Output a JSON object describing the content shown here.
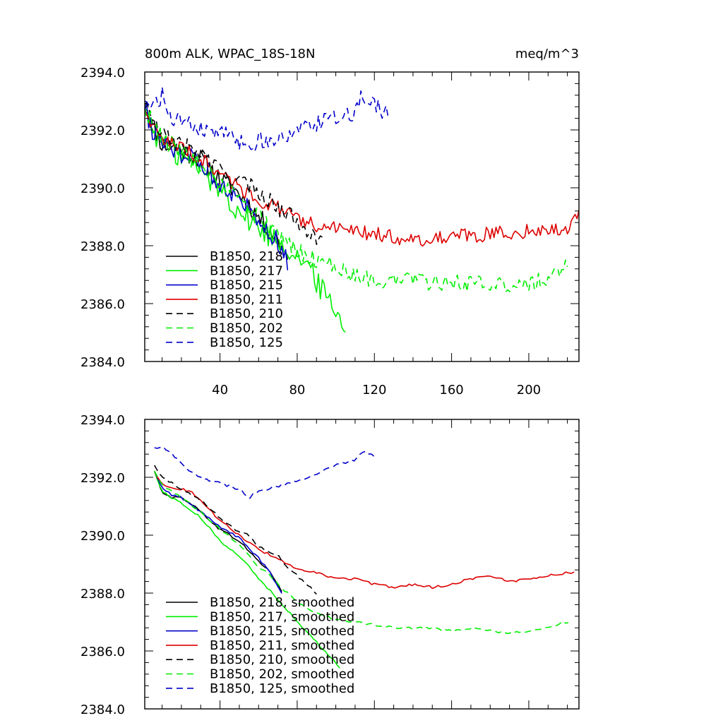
{
  "figure": {
    "title": "800m ALK, WPAC_18S-18N",
    "units": "meq/m^3"
  },
  "colors": {
    "black": "#000000",
    "green": "#00ee00",
    "blue": "#0000cc",
    "red": "#dd0000"
  },
  "chart_data": [
    {
      "type": "line",
      "name": "raw",
      "xlim": [
        1,
        226
      ],
      "ylim": [
        2384.0,
        2394.0
      ],
      "x_tick_labels": [
        "40",
        "80",
        "120",
        "160",
        "200"
      ],
      "x_ticks": [
        40,
        80,
        120,
        160,
        200
      ],
      "y_tick_labels": [
        "2394.0",
        "2392.0",
        "2390.0",
        "2388.0",
        "2386.0",
        "2384.0"
      ],
      "y_ticks": [
        2394,
        2392,
        2390,
        2388,
        2386,
        2384
      ],
      "series": [
        {
          "label": "B1850, 218",
          "color": "black",
          "dash": "solid",
          "noise": 0.35,
          "points": [
            [
              1,
              2392.9
            ],
            [
              5,
              2392.2
            ],
            [
              10,
              2391.5
            ],
            [
              20,
              2391.3
            ],
            [
              30,
              2391.0
            ],
            [
              40,
              2390.3
            ],
            [
              50,
              2389.8
            ],
            [
              60,
              2389.0
            ],
            [
              70,
              2388.2
            ],
            [
              75,
              2387.6
            ]
          ]
        },
        {
          "label": "B1850, 217",
          "color": "green",
          "dash": "solid",
          "noise": 0.45,
          "points": [
            [
              1,
              2392.8
            ],
            [
              5,
              2392.0
            ],
            [
              10,
              2391.6
            ],
            [
              20,
              2391.1
            ],
            [
              30,
              2390.6
            ],
            [
              40,
              2390.0
            ],
            [
              50,
              2389.2
            ],
            [
              60,
              2388.6
            ],
            [
              70,
              2388.2
            ],
            [
              80,
              2387.7
            ],
            [
              90,
              2386.8
            ],
            [
              100,
              2385.8
            ],
            [
              105,
              2385.1
            ]
          ]
        },
        {
          "label": "B1850, 215",
          "color": "blue",
          "dash": "solid",
          "noise": 0.35,
          "points": [
            [
              1,
              2392.8
            ],
            [
              5,
              2392.0
            ],
            [
              10,
              2391.5
            ],
            [
              20,
              2391.2
            ],
            [
              30,
              2390.8
            ],
            [
              40,
              2390.2
            ],
            [
              50,
              2389.6
            ],
            [
              60,
              2389.0
            ],
            [
              70,
              2388.1
            ],
            [
              75,
              2387.5
            ]
          ]
        },
        {
          "label": "B1850, 211",
          "color": "red",
          "dash": "solid",
          "noise": 0.25,
          "points": [
            [
              1,
              2392.8
            ],
            [
              5,
              2392.1
            ],
            [
              10,
              2391.7
            ],
            [
              20,
              2391.4
            ],
            [
              30,
              2391.0
            ],
            [
              40,
              2390.5
            ],
            [
              50,
              2390.0
            ],
            [
              60,
              2389.6
            ],
            [
              70,
              2389.3
            ],
            [
              80,
              2388.9
            ],
            [
              90,
              2388.7
            ],
            [
              100,
              2388.6
            ],
            [
              120,
              2388.4
            ],
            [
              140,
              2388.2
            ],
            [
              160,
              2388.3
            ],
            [
              180,
              2388.4
            ],
            [
              200,
              2388.5
            ],
            [
              215,
              2388.6
            ],
            [
              220,
              2388.6
            ],
            [
              226,
              2389.0
            ]
          ]
        },
        {
          "label": "B1850, 210",
          "color": "black",
          "dash": "dash",
          "noise": 0.3,
          "points": [
            [
              1,
              2393.0
            ],
            [
              5,
              2392.3
            ],
            [
              10,
              2391.8
            ],
            [
              20,
              2391.5
            ],
            [
              30,
              2391.2
            ],
            [
              40,
              2390.6
            ],
            [
              50,
              2390.2
            ],
            [
              60,
              2389.9
            ],
            [
              70,
              2389.3
            ],
            [
              80,
              2388.9
            ],
            [
              90,
              2388.3
            ],
            [
              93,
              2388.0
            ]
          ]
        },
        {
          "label": "B1850, 202",
          "color": "green",
          "dash": "dash",
          "noise": 0.3,
          "points": [
            [
              1,
              2392.8
            ],
            [
              10,
              2391.6
            ],
            [
              20,
              2391.2
            ],
            [
              30,
              2390.8
            ],
            [
              40,
              2390.2
            ],
            [
              50,
              2389.5
            ],
            [
              60,
              2389.0
            ],
            [
              70,
              2388.4
            ],
            [
              80,
              2387.8
            ],
            [
              90,
              2387.5
            ],
            [
              100,
              2387.3
            ],
            [
              110,
              2387.0
            ],
            [
              120,
              2386.8
            ],
            [
              140,
              2386.8
            ],
            [
              160,
              2386.7
            ],
            [
              180,
              2386.7
            ],
            [
              190,
              2386.6
            ],
            [
              200,
              2386.7
            ],
            [
              210,
              2386.9
            ],
            [
              220,
              2387.3
            ]
          ]
        },
        {
          "label": "B1850, 125",
          "color": "blue",
          "dash": "dash",
          "noise": 0.3,
          "points": [
            [
              1,
              2393.1
            ],
            [
              5,
              2392.8
            ],
            [
              10,
              2393.2
            ],
            [
              15,
              2392.4
            ],
            [
              20,
              2392.3
            ],
            [
              30,
              2392.0
            ],
            [
              40,
              2391.9
            ],
            [
              50,
              2391.6
            ],
            [
              55,
              2391.3
            ],
            [
              60,
              2391.7
            ],
            [
              70,
              2391.6
            ],
            [
              80,
              2391.9
            ],
            [
              90,
              2392.2
            ],
            [
              100,
              2392.4
            ],
            [
              110,
              2392.6
            ],
            [
              114,
              2393.2
            ],
            [
              120,
              2392.8
            ],
            [
              127,
              2392.6
            ]
          ]
        }
      ]
    },
    {
      "type": "line",
      "name": "smoothed",
      "xlim": [
        1,
        226
      ],
      "ylim": [
        2384.0,
        2394.0
      ],
      "x_tick_labels": [],
      "x_ticks": [
        40,
        80,
        120,
        160,
        200
      ],
      "y_tick_labels": [
        "2394.0",
        "2392.0",
        "2390.0",
        "2388.0",
        "2386.0",
        "2384.0"
      ],
      "y_ticks": [
        2394,
        2392,
        2390,
        2388,
        2386,
        2384
      ],
      "series": [
        {
          "label": "B1850, 218, smoothed",
          "color": "black",
          "dash": "solid",
          "noise": 0.04,
          "points": [
            [
              6,
              2392.2
            ],
            [
              10,
              2391.5
            ],
            [
              15,
              2391.3
            ],
            [
              20,
              2391.3
            ],
            [
              25,
              2391.1
            ],
            [
              30,
              2390.8
            ],
            [
              40,
              2390.2
            ],
            [
              50,
              2389.8
            ],
            [
              60,
              2389.1
            ],
            [
              65,
              2388.8
            ],
            [
              70,
              2388.3
            ],
            [
              73,
              2387.9
            ]
          ]
        },
        {
          "label": "B1850, 217, smoothed",
          "color": "green",
          "dash": "solid",
          "noise": 0.04,
          "points": [
            [
              6,
              2392.2
            ],
            [
              10,
              2391.5
            ],
            [
              15,
              2391.3
            ],
            [
              20,
              2391.1
            ],
            [
              30,
              2390.6
            ],
            [
              40,
              2389.8
            ],
            [
              50,
              2389.3
            ],
            [
              55,
              2388.9
            ],
            [
              60,
              2388.5
            ],
            [
              70,
              2387.8
            ],
            [
              80,
              2387.0
            ],
            [
              90,
              2386.3
            ],
            [
              100,
              2385.6
            ],
            [
              103,
              2385.3
            ]
          ]
        },
        {
          "label": "B1850, 215, smoothed",
          "color": "blue",
          "dash": "solid",
          "noise": 0.04,
          "points": [
            [
              6,
              2392.2
            ],
            [
              10,
              2391.6
            ],
            [
              15,
              2391.4
            ],
            [
              20,
              2391.3
            ],
            [
              30,
              2390.8
            ],
            [
              40,
              2390.3
            ],
            [
              50,
              2389.9
            ],
            [
              60,
              2389.2
            ],
            [
              65,
              2388.8
            ],
            [
              70,
              2388.2
            ],
            [
              73,
              2387.9
            ]
          ]
        },
        {
          "label": "B1850, 211, smoothed",
          "color": "red",
          "dash": "solid",
          "noise": 0.04,
          "points": [
            [
              6,
              2392.2
            ],
            [
              10,
              2391.8
            ],
            [
              15,
              2391.6
            ],
            [
              20,
              2391.6
            ],
            [
              25,
              2391.5
            ],
            [
              30,
              2391.2
            ],
            [
              40,
              2390.5
            ],
            [
              50,
              2390.0
            ],
            [
              60,
              2389.5
            ],
            [
              70,
              2389.2
            ],
            [
              80,
              2388.8
            ],
            [
              90,
              2388.7
            ],
            [
              100,
              2388.5
            ],
            [
              110,
              2388.5
            ],
            [
              120,
              2388.3
            ],
            [
              130,
              2388.2
            ],
            [
              140,
              2388.3
            ],
            [
              150,
              2388.2
            ],
            [
              160,
              2388.3
            ],
            [
              170,
              2388.5
            ],
            [
              180,
              2388.6
            ],
            [
              190,
              2388.4
            ],
            [
              200,
              2388.5
            ],
            [
              210,
              2388.6
            ],
            [
              220,
              2388.7
            ],
            [
              224,
              2388.7
            ]
          ]
        },
        {
          "label": "B1850, 210, smoothed",
          "color": "black",
          "dash": "dash",
          "noise": 0.04,
          "points": [
            [
              6,
              2392.4
            ],
            [
              10,
              2392.0
            ],
            [
              20,
              2391.6
            ],
            [
              30,
              2391.2
            ],
            [
              40,
              2390.6
            ],
            [
              50,
              2390.1
            ],
            [
              55,
              2390.0
            ],
            [
              60,
              2389.6
            ],
            [
              70,
              2389.3
            ],
            [
              75,
              2388.9
            ],
            [
              80,
              2388.6
            ],
            [
              85,
              2388.3
            ],
            [
              90,
              2388.0
            ]
          ]
        },
        {
          "label": "B1850, 202, smoothed",
          "color": "green",
          "dash": "dash",
          "noise": 0.04,
          "points": [
            [
              6,
              2392.2
            ],
            [
              10,
              2391.7
            ],
            [
              20,
              2391.3
            ],
            [
              30,
              2390.8
            ],
            [
              40,
              2390.2
            ],
            [
              50,
              2389.7
            ],
            [
              55,
              2389.3
            ],
            [
              60,
              2388.9
            ],
            [
              65,
              2388.7
            ],
            [
              70,
              2388.3
            ],
            [
              80,
              2387.7
            ],
            [
              90,
              2387.3
            ],
            [
              100,
              2387.1
            ],
            [
              110,
              2387.0
            ],
            [
              120,
              2386.9
            ],
            [
              130,
              2386.8
            ],
            [
              140,
              2386.8
            ],
            [
              150,
              2386.8
            ],
            [
              160,
              2386.7
            ],
            [
              170,
              2386.8
            ],
            [
              180,
              2386.7
            ],
            [
              190,
              2386.6
            ],
            [
              200,
              2386.7
            ],
            [
              210,
              2386.8
            ],
            [
              218,
              2387.0
            ],
            [
              221,
              2387.0
            ]
          ]
        },
        {
          "label": "B1850, 125, smoothed",
          "color": "blue",
          "dash": "dash",
          "noise": 0.05,
          "points": [
            [
              6,
              2393.0
            ],
            [
              10,
              2393.1
            ],
            [
              15,
              2392.8
            ],
            [
              20,
              2392.5
            ],
            [
              25,
              2392.2
            ],
            [
              30,
              2392.0
            ],
            [
              40,
              2391.8
            ],
            [
              50,
              2391.6
            ],
            [
              55,
              2391.3
            ],
            [
              60,
              2391.5
            ],
            [
              70,
              2391.7
            ],
            [
              80,
              2391.9
            ],
            [
              90,
              2392.1
            ],
            [
              100,
              2392.4
            ],
            [
              110,
              2392.6
            ],
            [
              115,
              2392.9
            ],
            [
              120,
              2392.7
            ],
            [
              122,
              2392.7
            ]
          ]
        }
      ]
    }
  ]
}
